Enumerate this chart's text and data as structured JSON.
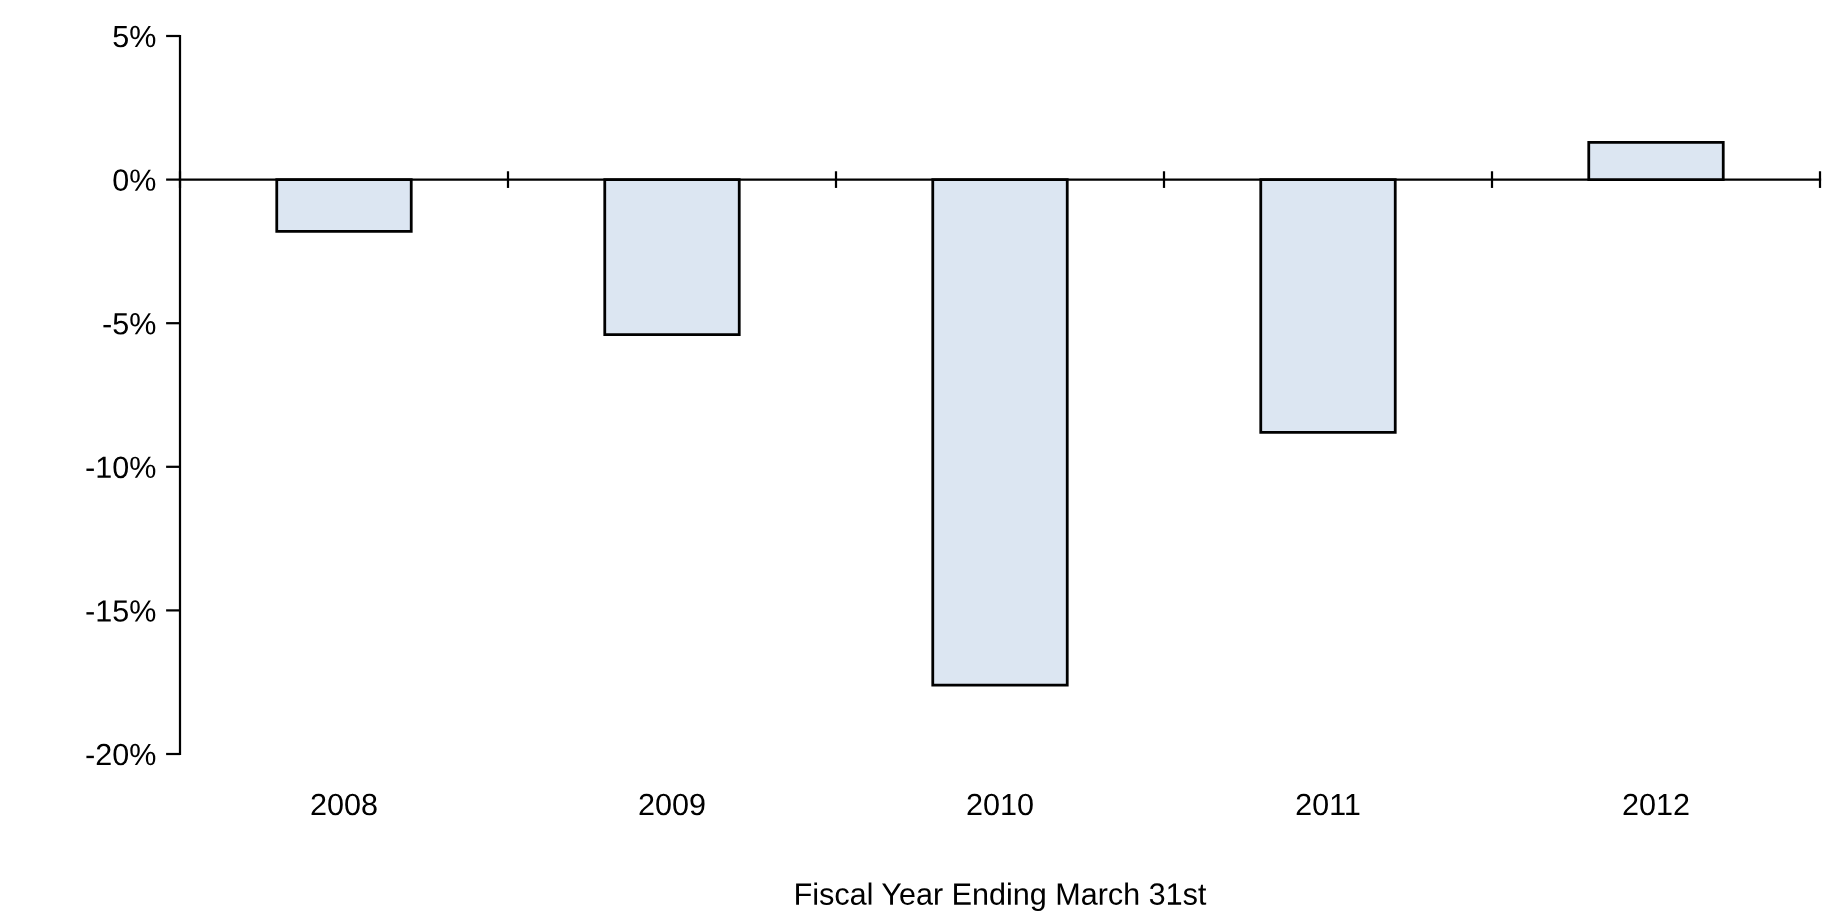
{
  "chart_data": {
    "type": "bar",
    "xlabel": "Fiscal Year Ending March 31st",
    "categories": [
      "2008",
      "2009",
      "2010",
      "2011",
      "2012"
    ],
    "values": [
      -1.8,
      -5.4,
      -17.6,
      -8.8,
      1.3
    ],
    "color": "#dce6f2",
    "ylim": [
      -20,
      5
    ],
    "yticks": [
      {
        "value": -20,
        "label": "-20%"
      },
      {
        "value": -15,
        "label": "-15%"
      },
      {
        "value": -10,
        "label": "-10%"
      },
      {
        "value": -5,
        "label": "-5%"
      },
      {
        "value": 0,
        "label": "0%"
      },
      {
        "value": 5,
        "label": "5%"
      }
    ]
  }
}
